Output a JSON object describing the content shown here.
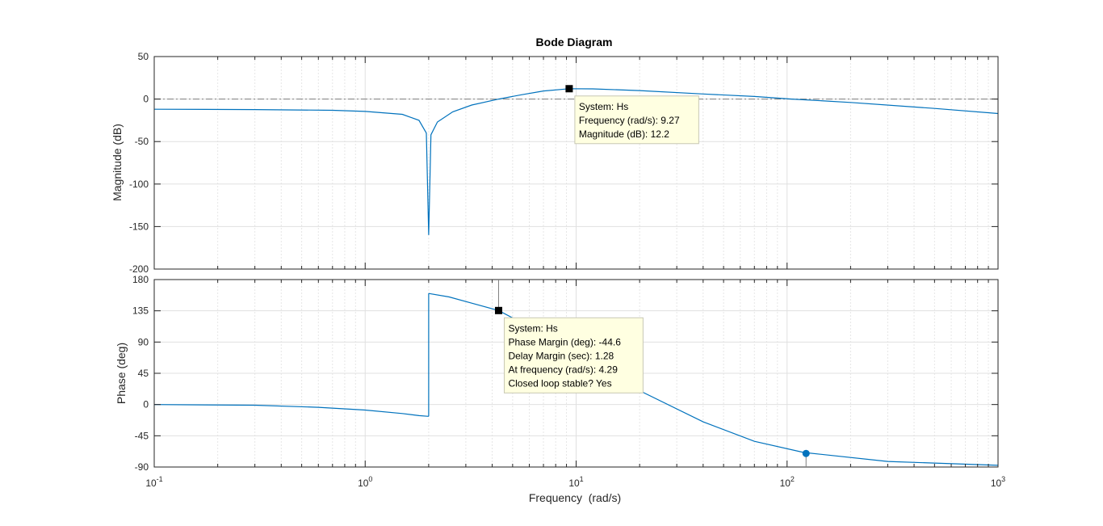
{
  "chart_data": {
    "type": "line",
    "title": "Bode Diagram",
    "xlabel": "Frequency  (rad/s)",
    "x_scale": "log",
    "xlim": [
      0.1,
      1000
    ],
    "x_ticks": [
      {
        "value": 0.1,
        "base": "10",
        "exp": "-1"
      },
      {
        "value": 1,
        "base": "10",
        "exp": "0"
      },
      {
        "value": 10,
        "base": "10",
        "exp": "1"
      },
      {
        "value": 100,
        "base": "10",
        "exp": "2"
      },
      {
        "value": 1000,
        "base": "10",
        "exp": "3"
      }
    ],
    "grid": true,
    "line_color": "#0072bd",
    "magnitude": {
      "ylabel": "Magnitude (dB)",
      "ylim": [
        -200,
        50
      ],
      "yticks": [
        "50",
        "0",
        "-50",
        "-100",
        "-150",
        "-200"
      ],
      "ytick_values": [
        50,
        0,
        -50,
        -100,
        -150,
        -200
      ],
      "reference_line": 0,
      "x": [
        0.1,
        0.3,
        0.7,
        1.0,
        1.5,
        1.8,
        1.95,
        2.0,
        2.05,
        2.2,
        2.6,
        3.2,
        4.3,
        5.5,
        7.0,
        9.27,
        12,
        20,
        40,
        70,
        105,
        200,
        500,
        1000
      ],
      "y": [
        -12,
        -12.4,
        -13.2,
        -14.5,
        -18,
        -25,
        -40,
        -160,
        -42,
        -27,
        -15,
        -7,
        0,
        5,
        9.5,
        12.2,
        12,
        10,
        6,
        3,
        0,
        -4,
        -11,
        -17
      ]
    },
    "phase": {
      "ylabel": "Phase (deg)",
      "ylim": [
        -90,
        180
      ],
      "yticks": [
        "180",
        "135",
        "90",
        "45",
        "0",
        "-45",
        "-90"
      ],
      "ytick_values": [
        180,
        135,
        90,
        45,
        0,
        -45,
        -90
      ],
      "reference_line": 180,
      "segments": [
        {
          "x": [
            0.1,
            0.3,
            0.6,
            1.0,
            1.5,
            1.8,
            2.0
          ],
          "y": [
            0,
            -1,
            -4,
            -8,
            -13,
            -16,
            -17
          ]
        },
        {
          "x": [
            2.0,
            2.5,
            3.2,
            4.29,
            6,
            8,
            12,
            20,
            40,
            70,
            120,
            300,
            1000
          ],
          "y": [
            160,
            155,
            146,
            135.4,
            112,
            90,
            60,
            20,
            -25,
            -53,
            -69,
            -82,
            -87.5
          ]
        }
      ]
    },
    "datatips": [
      {
        "panel": "magnitude",
        "x": 9.27,
        "y": 12.2,
        "lines": [
          "System: Hs",
          "Frequency (rad/s): 9.27",
          "Magnitude (dB): 12.2"
        ]
      },
      {
        "panel": "phase",
        "x": 4.29,
        "y": 135.4,
        "lines": [
          "System: Hs",
          "Phase Margin (deg): -44.6",
          "Delay Margin (sec): 1.28",
          "At frequency (rad/s): 4.29",
          "Closed loop stable? Yes"
        ]
      }
    ],
    "phase_crossover_marker": {
      "x": 123,
      "y": -70.5
    }
  }
}
